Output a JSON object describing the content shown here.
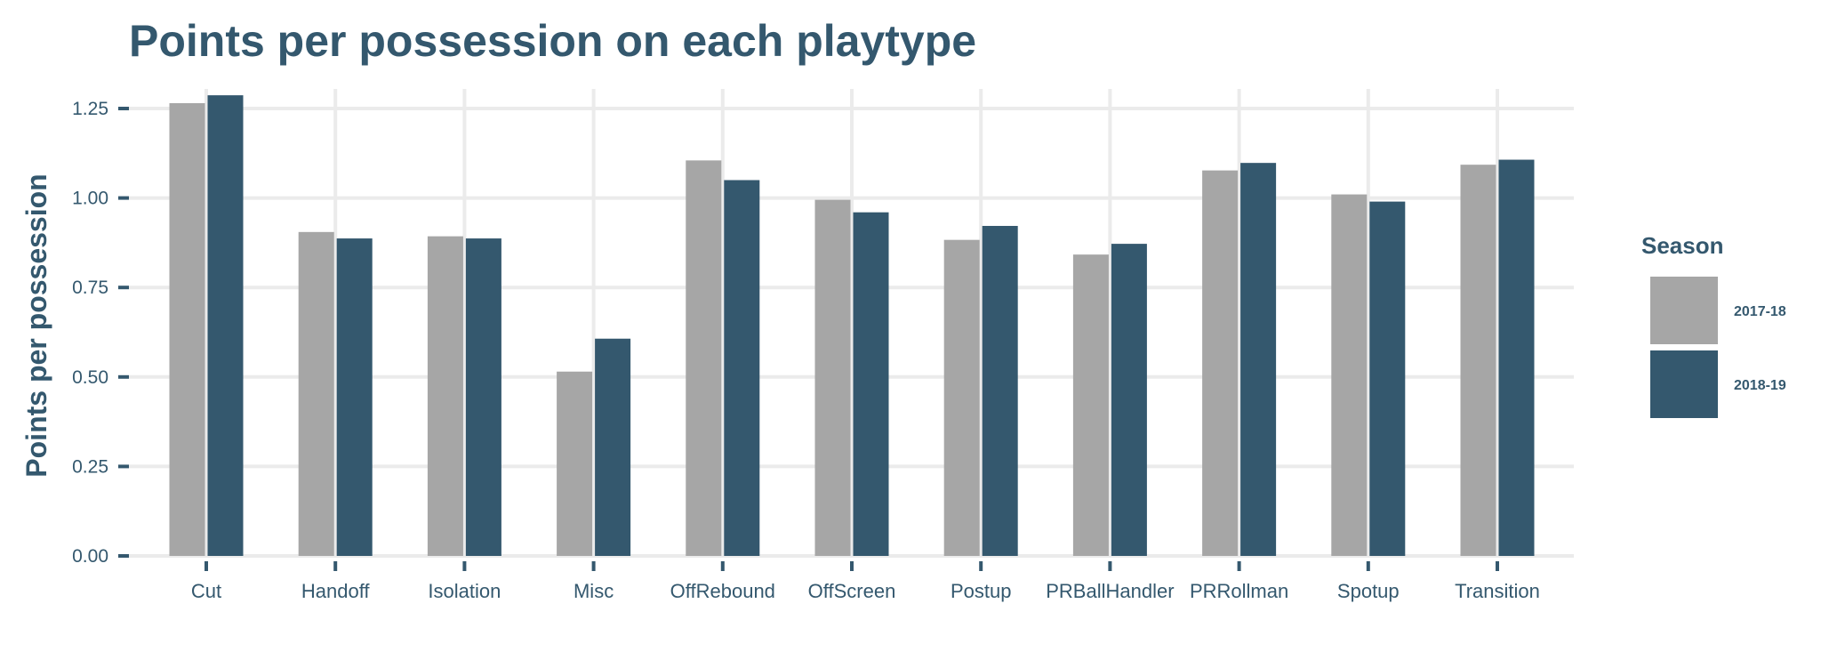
{
  "chart_data": {
    "type": "bar",
    "title": "Points per possession on each playtype",
    "xlabel": "",
    "ylabel": "Points per possession",
    "ylim": [
      0,
      1.25
    ],
    "yticks": [
      "0.00",
      "0.25",
      "0.50",
      "0.75",
      "1.00",
      "1.25"
    ],
    "grid": true,
    "legend_position": "right",
    "legend_title": "Season",
    "categories": [
      "Cut",
      "Handoff",
      "Isolation",
      "Misc",
      "OffRebound",
      "OffScreen",
      "Postup",
      "PRBallHandler",
      "PRRollman",
      "Spotup",
      "Transition"
    ],
    "series": [
      {
        "name": "2017-18",
        "color": "#a6a6a6",
        "values": [
          1.265,
          0.905,
          0.893,
          0.515,
          1.105,
          0.995,
          0.883,
          0.842,
          1.077,
          1.01,
          1.093
        ]
      },
      {
        "name": "2018-19",
        "color": "#34586e",
        "values": [
          1.287,
          0.887,
          0.887,
          0.607,
          1.05,
          0.96,
          0.922,
          0.872,
          1.098,
          0.99,
          1.107
        ]
      }
    ]
  }
}
